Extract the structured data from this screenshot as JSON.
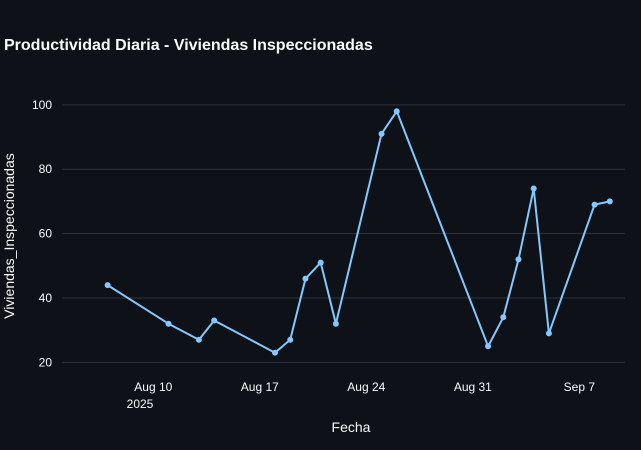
{
  "chart_data": {
    "type": "line",
    "title": "Productividad Diaria - Viviendas Inspeccionadas",
    "xlabel": "Fecha",
    "ylabel": "Viviendas_Inspeccionadas",
    "x_tick_labels": [
      "Aug 10",
      "Aug 17",
      "Aug 24",
      "Aug 31",
      "Sep 7"
    ],
    "x_tick_year": "2025",
    "x_tick_dates": [
      "2025-08-10",
      "2025-08-17",
      "2025-08-24",
      "2025-08-31",
      "2025-09-07"
    ],
    "xlim": [
      "2025-08-04",
      "2025-09-10"
    ],
    "y_ticks": [
      20,
      40,
      60,
      80,
      100
    ],
    "ylim": [
      17,
      104
    ],
    "grid": true,
    "legend": false,
    "line_color": "#83c9ff",
    "background": "#0e1117",
    "series": [
      {
        "x": [
          "2025-08-07",
          "2025-08-11",
          "2025-08-13",
          "2025-08-14",
          "2025-08-18",
          "2025-08-19",
          "2025-08-20",
          "2025-08-21",
          "2025-08-22",
          "2025-08-25",
          "2025-08-26",
          "2025-09-01",
          "2025-09-02",
          "2025-09-03",
          "2025-09-04",
          "2025-09-05",
          "2025-09-08",
          "2025-09-09"
        ],
        "y": [
          44,
          32,
          27,
          33,
          23,
          27,
          46,
          51,
          32,
          91,
          98,
          25,
          34,
          52,
          74,
          29,
          69,
          70
        ]
      }
    ]
  }
}
